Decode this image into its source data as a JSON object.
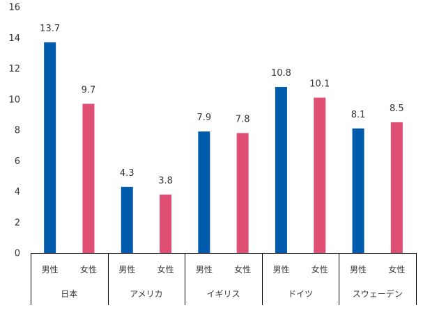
{
  "chart_data": {
    "type": "bar",
    "title": "",
    "xlabel": "",
    "ylabel": "",
    "ylim": [
      0,
      16
    ],
    "yticks": [
      0,
      2,
      4,
      6,
      8,
      10,
      12,
      14,
      16
    ],
    "grid": false,
    "legend": "none",
    "groups": [
      "日本",
      "アメリカ",
      "イギリス",
      "ドイツ",
      "スウェーデン"
    ],
    "subcategories": [
      "男性",
      "女性"
    ],
    "series": [
      {
        "key": "male",
        "color": "#005BAC",
        "values": [
          13.7,
          4.3,
          7.9,
          10.8,
          8.1
        ]
      },
      {
        "key": "female",
        "color": "#DE4F73",
        "values": [
          9.7,
          3.8,
          7.8,
          10.1,
          8.5
        ]
      }
    ]
  }
}
